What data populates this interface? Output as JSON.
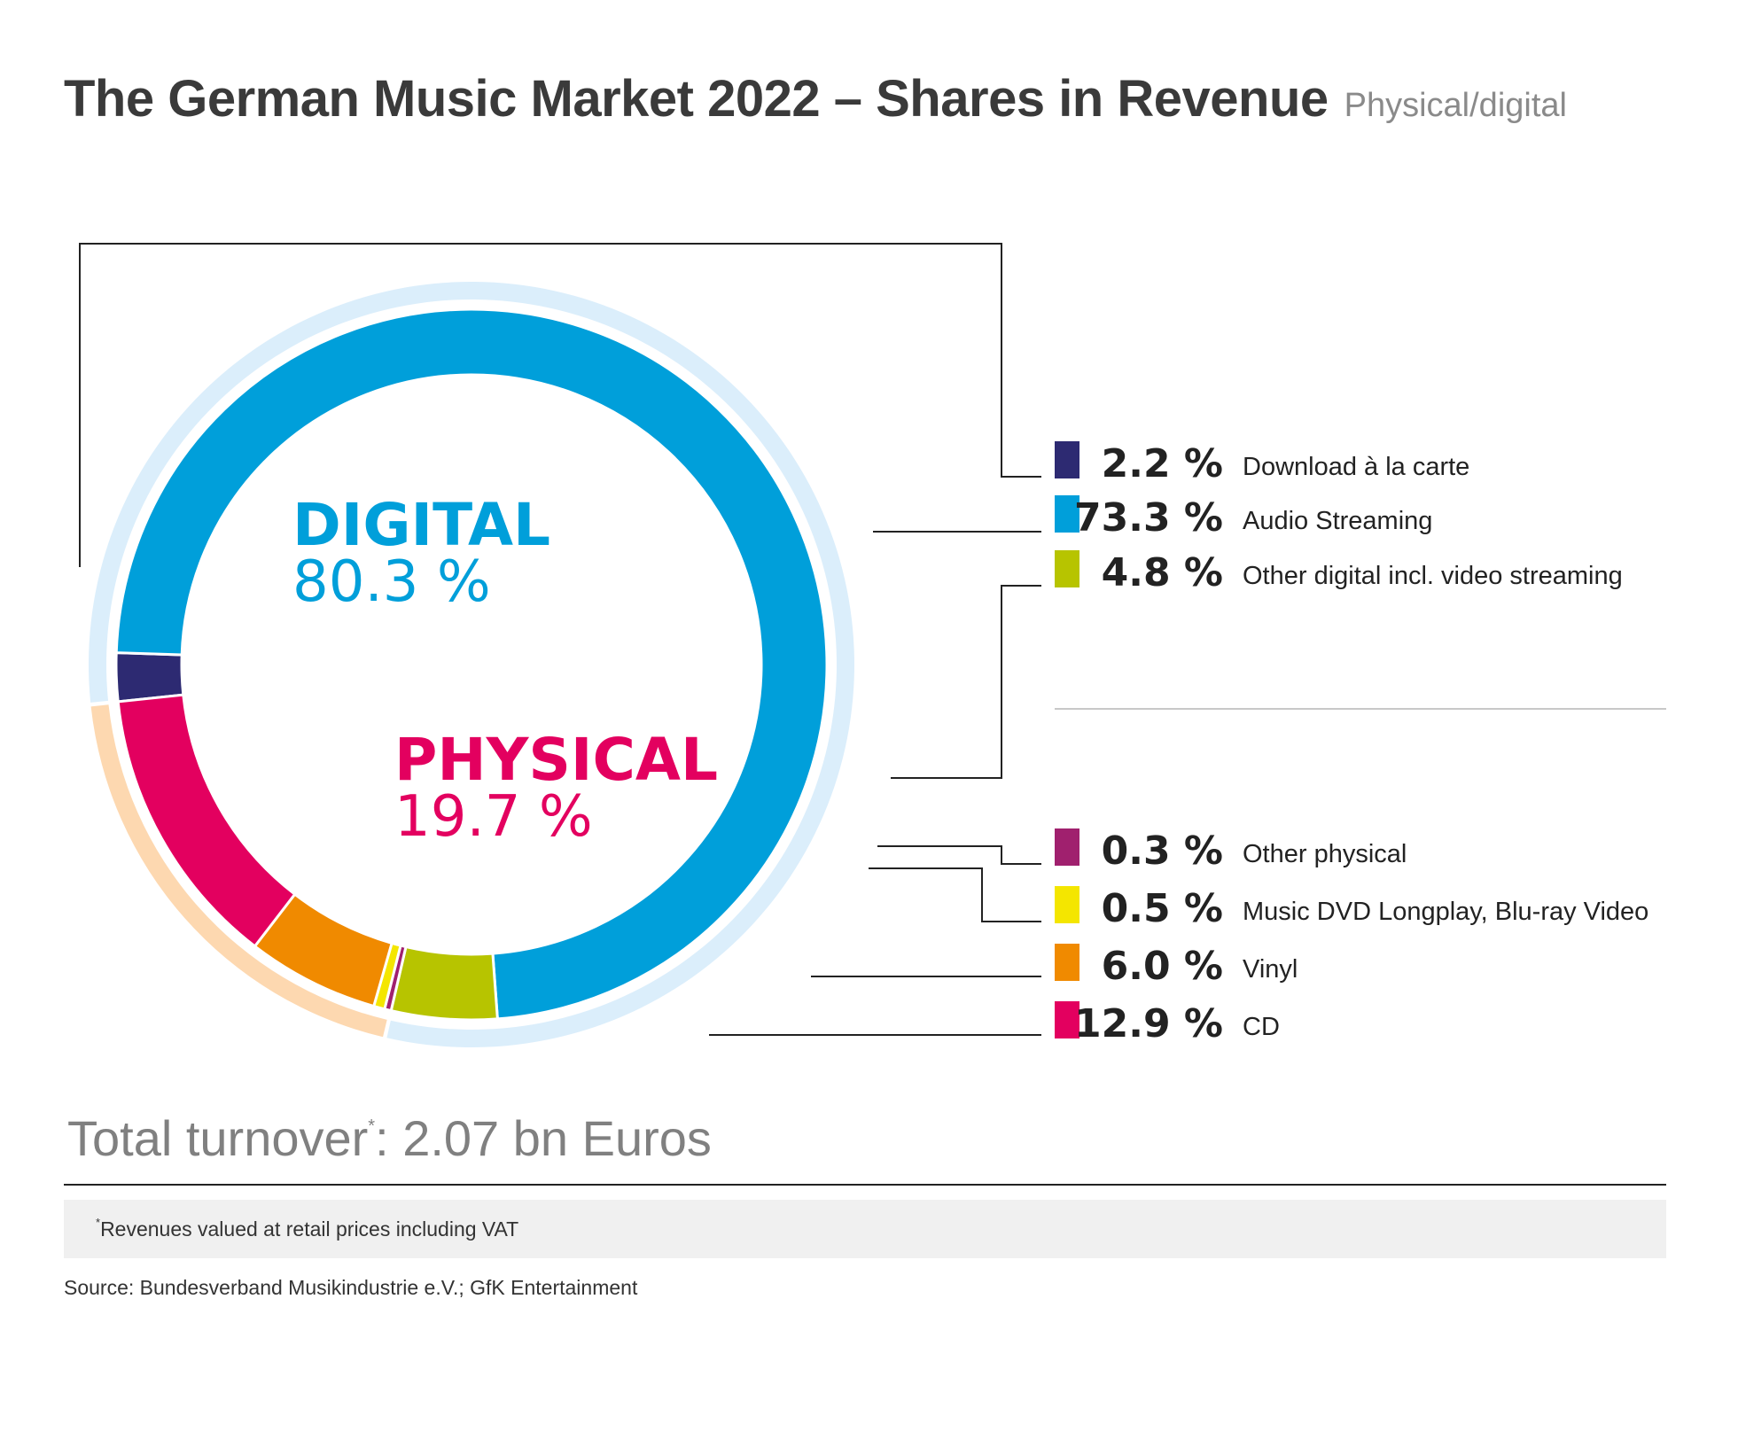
{
  "title": "The German Music Market 2022 – Shares in Revenue",
  "subtitle": "Physical/digital",
  "chart_data": {
    "type": "pie",
    "groups": [
      {
        "name": "DIGITAL",
        "value_label": "80.3 %",
        "value": 80.3,
        "color": "#009fda",
        "ring_color": "#dbeefb"
      },
      {
        "name": "PHYSICAL",
        "value_label": "19.7 %",
        "value": 19.7,
        "color": "#e3005f",
        "ring_color": "#fdd8b0"
      }
    ],
    "slices": [
      {
        "label": "Download à la carte",
        "value": 2.2,
        "value_label": "2.2 %",
        "color": "#2d2a72",
        "group": "digital"
      },
      {
        "label": "Audio Streaming",
        "value": 73.3,
        "value_label": "73.3 %",
        "color": "#009fda",
        "group": "digital"
      },
      {
        "label": "Other digital incl. video streaming",
        "value": 4.8,
        "value_label": "4.8 %",
        "color": "#b7c400",
        "group": "digital"
      },
      {
        "label": "Other physical",
        "value": 0.3,
        "value_label": "0.3 %",
        "color": "#a0206e",
        "group": "physical"
      },
      {
        "label": "Music DVD Longplay, Blu-ray Video",
        "value": 0.5,
        "value_label": "0.5 %",
        "color": "#f4e600",
        "group": "physical"
      },
      {
        "label": "Vinyl",
        "value": 6.0,
        "value_label": "6.0 %",
        "color": "#f08a00",
        "group": "physical"
      },
      {
        "label": "CD",
        "value": 12.9,
        "value_label": "12.9 %",
        "color": "#e3005f",
        "group": "physical"
      }
    ]
  },
  "total": {
    "label": "Total turnover",
    "mark": "*",
    "value": ": 2.07 bn Euros"
  },
  "footnote": {
    "mark": "*",
    "text": "Revenues valued at retail prices including VAT"
  },
  "source": "Source: Bundesverband Musikindustrie e.V.; GfK Entertainment"
}
